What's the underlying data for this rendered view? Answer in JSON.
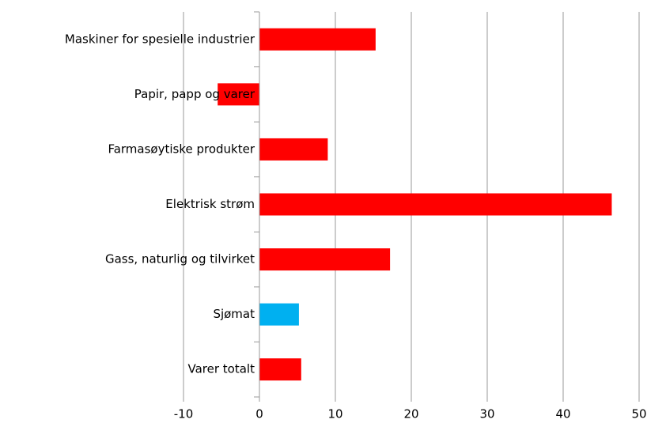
{
  "chart_data": {
    "type": "barh",
    "categories": [
      "Maskiner for spesielle industrier",
      "Papir, papp og varer",
      "Farmasøytiske produkter",
      "Elektrisk strøm",
      "Gass, naturlig og tilvirket",
      "Sjømat",
      "Varer totalt"
    ],
    "values": [
      15.3,
      -5.5,
      9.0,
      46.4,
      17.2,
      5.2,
      5.5
    ],
    "colors": [
      "#ff0000",
      "#ff0000",
      "#ff0000",
      "#ff0000",
      "#ff0000",
      "#00b0f0",
      "#ff0000"
    ],
    "xlim": [
      -10,
      50
    ],
    "xticks": [
      -10,
      0,
      10,
      20,
      30,
      40,
      50
    ],
    "grid": true
  }
}
